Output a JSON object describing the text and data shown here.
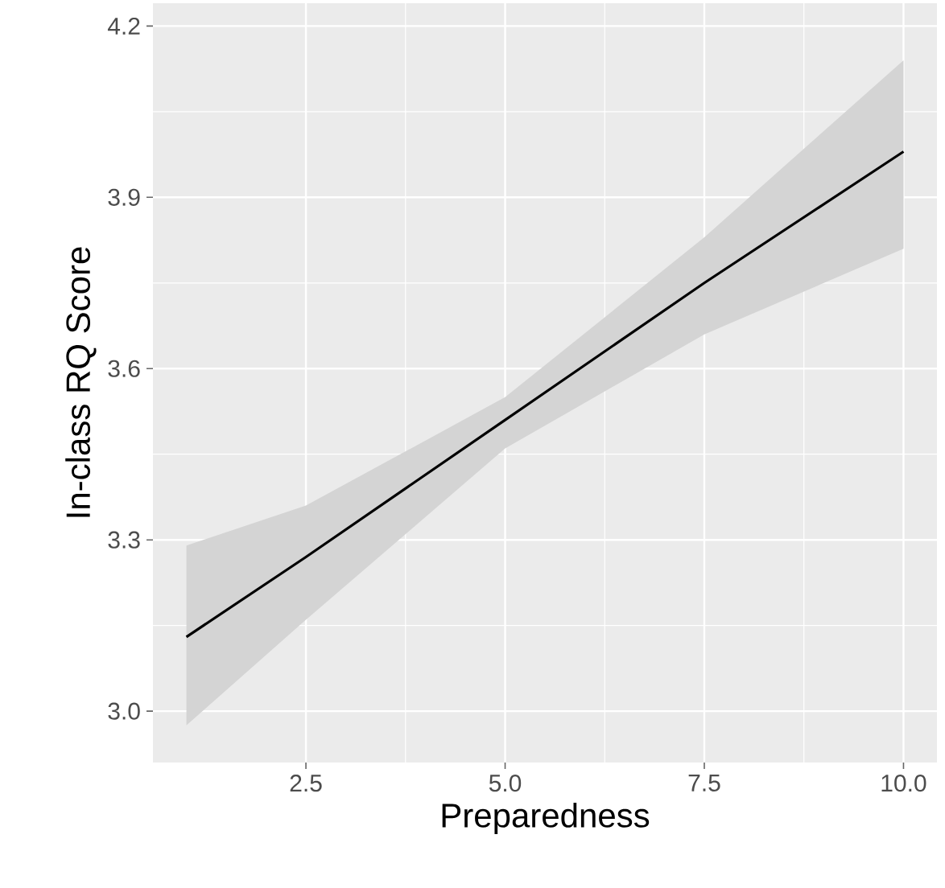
{
  "chart_data": {
    "type": "line",
    "xlabel": "Preparedness",
    "ylabel": "In-class RQ Score",
    "xlim": [
      0.58,
      10.42
    ],
    "ylim": [
      2.91,
      4.24
    ],
    "xticks": [
      {
        "value": 2.5,
        "label": "2.5"
      },
      {
        "value": 5,
        "label": "5.0"
      },
      {
        "value": 7.5,
        "label": "7.5"
      },
      {
        "value": 10,
        "label": "10.0"
      }
    ],
    "yticks": [
      {
        "value": 3.0,
        "label": "3.0"
      },
      {
        "value": 3.3,
        "label": "3.3"
      },
      {
        "value": 3.6,
        "label": "3.6"
      },
      {
        "value": 3.9,
        "label": "3.9"
      },
      {
        "value": 4.2,
        "label": "4.2"
      }
    ],
    "grid": true,
    "marker": "none",
    "line_style": "solid",
    "series": [
      {
        "color": "#000000",
        "x": [
          1,
          2.5,
          5,
          7.5,
          10
        ],
        "values": [
          3.13,
          3.27,
          3.51,
          3.75,
          3.98
        ],
        "lower": [
          2.975,
          3.16,
          3.46,
          3.66,
          3.81
        ],
        "upper": [
          3.29,
          3.36,
          3.55,
          3.83,
          4.14
        ]
      }
    ]
  }
}
